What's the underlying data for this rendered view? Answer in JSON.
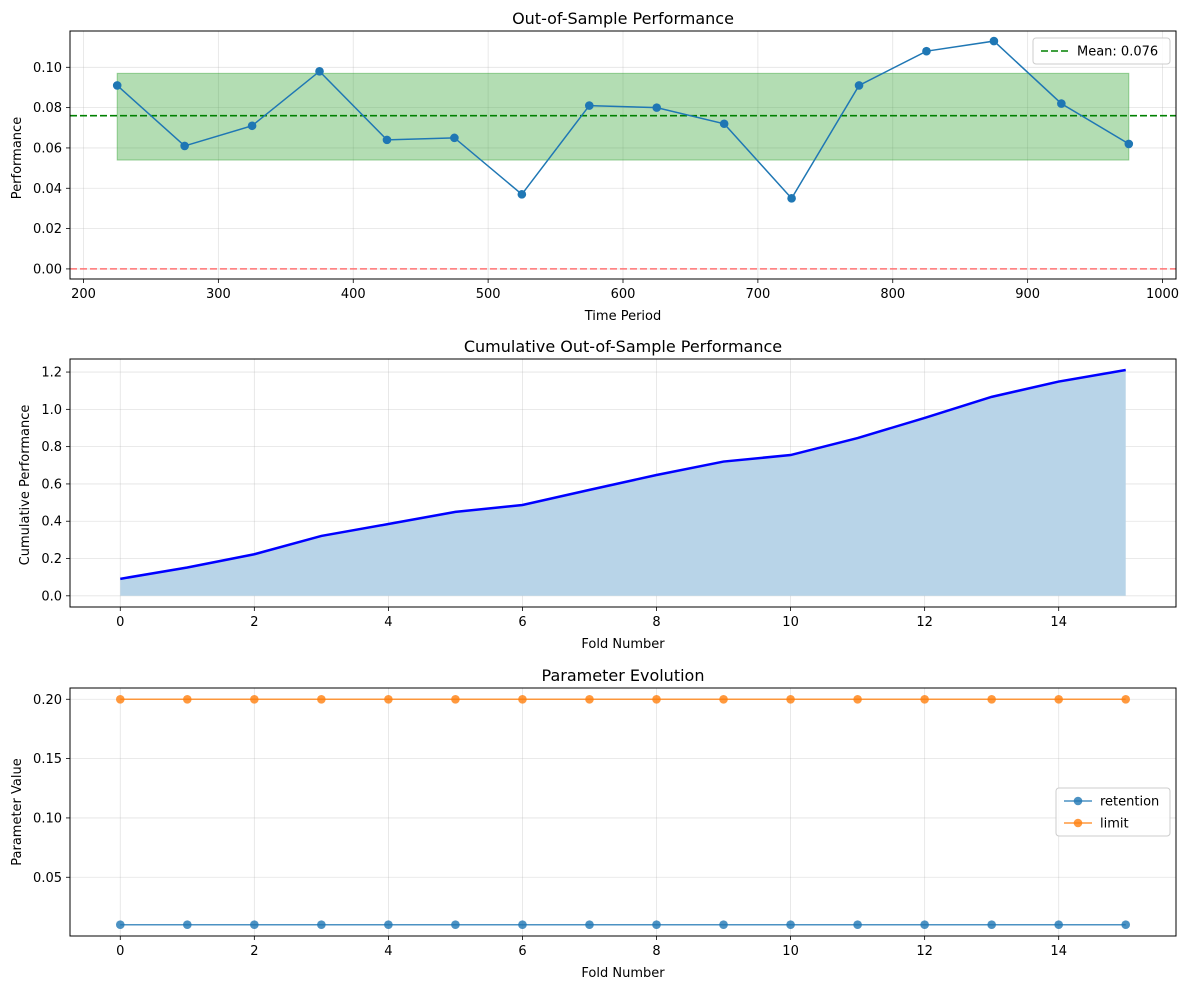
{
  "chart_data": [
    {
      "type": "line",
      "title": "Out-of-Sample Performance",
      "xlabel": "Time Period",
      "ylabel": "Performance",
      "xlim": [
        190,
        1010
      ],
      "ylim": [
        -0.005,
        0.118
      ],
      "xticks": [
        200,
        300,
        400,
        500,
        600,
        700,
        800,
        900,
        1000
      ],
      "yticks": [
        0.0,
        0.02,
        0.04,
        0.06,
        0.08,
        0.1
      ],
      "ytick_labels": [
        "0.00",
        "0.02",
        "0.04",
        "0.06",
        "0.08",
        "0.10"
      ],
      "grid": true,
      "legend_position": "upper right",
      "series": [
        {
          "color": "#1f77b4",
          "x": [
            225,
            275,
            325,
            375,
            425,
            475,
            525,
            575,
            625,
            675,
            725,
            775,
            825,
            875,
            925,
            975
          ],
          "values": [
            0.091,
            0.061,
            0.071,
            0.098,
            0.064,
            0.065,
            0.037,
            0.081,
            0.08,
            0.072,
            0.035,
            0.091,
            0.108,
            0.113,
            0.082,
            0.062
          ]
        }
      ],
      "band": {
        "x_range": [
          225,
          975
        ],
        "y_range": [
          0.054,
          0.097
        ],
        "color": "#2ca02c"
      },
      "mean_line": {
        "value": 0.076,
        "label": "Mean: 0.076",
        "color": "#008000"
      },
      "zero_line": {
        "value": 0.0,
        "color": "#ff6b6b"
      }
    },
    {
      "type": "area",
      "title": "Cumulative Out-of-Sample Performance",
      "xlabel": "Fold Number",
      "ylabel": "Cumulative Performance",
      "xlim": [
        -0.75,
        15.75
      ],
      "ylim": [
        -0.06,
        1.27
      ],
      "xticks": [
        0,
        2,
        4,
        6,
        8,
        10,
        12,
        14
      ],
      "yticks": [
        0.0,
        0.2,
        0.4,
        0.6,
        0.8,
        1.0,
        1.2
      ],
      "ytick_labels": [
        "0.0",
        "0.2",
        "0.4",
        "0.6",
        "0.8",
        "1.0",
        "1.2"
      ],
      "grid": true,
      "series": [
        {
          "color": "#0000ff",
          "fill_color": "#b8d4e8",
          "x": [
            0,
            1,
            2,
            3,
            4,
            5,
            6,
            7,
            8,
            9,
            10,
            11,
            12,
            13,
            14,
            15
          ],
          "values": [
            0.091,
            0.152,
            0.223,
            0.321,
            0.385,
            0.45,
            0.487,
            0.568,
            0.648,
            0.72,
            0.755,
            0.846,
            0.954,
            1.067,
            1.149,
            1.211
          ]
        }
      ]
    },
    {
      "type": "line",
      "title": "Parameter Evolution",
      "xlabel": "Fold Number",
      "ylabel": "Parameter Value",
      "xlim": [
        -0.75,
        15.75
      ],
      "ylim": [
        0.0005,
        0.2095
      ],
      "xticks": [
        0,
        2,
        4,
        6,
        8,
        10,
        12,
        14
      ],
      "yticks": [
        0.05,
        0.1,
        0.15,
        0.2
      ],
      "ytick_labels": [
        "0.05",
        "0.10",
        "0.15",
        "0.20"
      ],
      "grid": true,
      "legend_position": "center right",
      "series": [
        {
          "name": "retention",
          "color": "#1f77b4",
          "x": [
            0,
            1,
            2,
            3,
            4,
            5,
            6,
            7,
            8,
            9,
            10,
            11,
            12,
            13,
            14,
            15
          ],
          "values": [
            0.01,
            0.01,
            0.01,
            0.01,
            0.01,
            0.01,
            0.01,
            0.01,
            0.01,
            0.01,
            0.01,
            0.01,
            0.01,
            0.01,
            0.01,
            0.01
          ]
        },
        {
          "name": "limit",
          "color": "#ff7f0e",
          "x": [
            0,
            1,
            2,
            3,
            4,
            5,
            6,
            7,
            8,
            9,
            10,
            11,
            12,
            13,
            14,
            15
          ],
          "values": [
            0.2,
            0.2,
            0.2,
            0.2,
            0.2,
            0.2,
            0.2,
            0.2,
            0.2,
            0.2,
            0.2,
            0.2,
            0.2,
            0.2,
            0.2,
            0.2
          ]
        }
      ]
    }
  ]
}
